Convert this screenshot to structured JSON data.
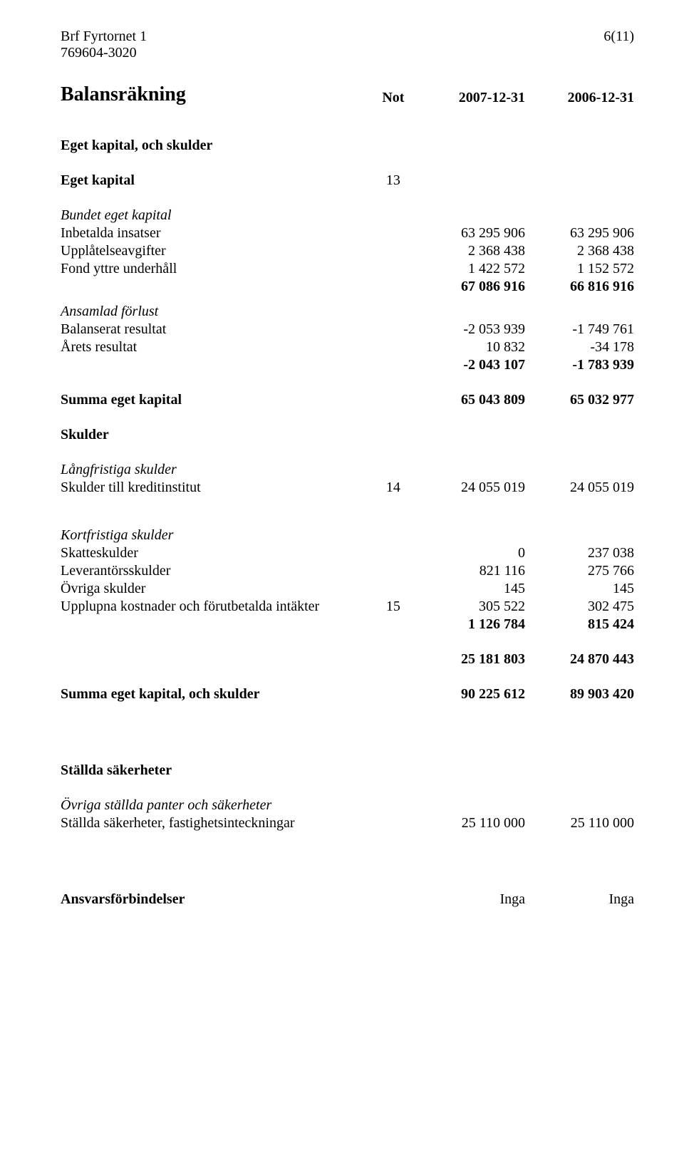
{
  "header": {
    "company": "Brf Fyrtornet 1",
    "orgnum": "769604-3020",
    "pageno": "6(11)"
  },
  "title": "Balansräkning",
  "columns": {
    "note": "Not",
    "a": "2007-12-31",
    "b": "2006-12-31"
  },
  "sections": {
    "eget_kapital_och_skulder": "Eget kapital, och skulder",
    "eget_kapital": {
      "label": "Eget kapital",
      "note": "13"
    },
    "bundet_eget_kapital": "Bundet eget kapital",
    "inbetalda_insatser": {
      "label": "Inbetalda insatser",
      "a": "63 295 906",
      "b": "63 295 906"
    },
    "upplatelseavgifter": {
      "label": "Upplåtelseavgifter",
      "a": "2 368 438",
      "b": "2 368 438"
    },
    "fond_yttre": {
      "label": "Fond yttre underhåll",
      "a": "1 422 572",
      "b": "1 152 572"
    },
    "bundet_sum": {
      "a": "67 086 916",
      "b": "66 816 916"
    },
    "ansamlad_forlust": "Ansamlad förlust",
    "balanserat_resultat": {
      "label": "Balanserat resultat",
      "a": "-2 053 939",
      "b": "-1 749 761"
    },
    "arets_resultat": {
      "label": "Årets resultat",
      "a": "10 832",
      "b": "-34 178"
    },
    "ansamlad_sum": {
      "a": "-2 043 107",
      "b": "-1 783 939"
    },
    "summa_eget_kapital": {
      "label": "Summa eget kapital",
      "a": "65 043 809",
      "b": "65 032 977"
    },
    "skulder": "Skulder",
    "langfristiga": "Långfristiga skulder",
    "skulder_kreditinstitut": {
      "label": "Skulder till kreditinstitut",
      "note": "14",
      "a": "24 055 019",
      "b": "24 055 019"
    },
    "kortfristiga": "Kortfristiga skulder",
    "skatteskulder": {
      "label": "Skatteskulder",
      "a": "0",
      "b": "237 038"
    },
    "leverantorsskulder": {
      "label": "Leverantörsskulder",
      "a": "821 116",
      "b": "275 766"
    },
    "ovriga_skulder": {
      "label": "Övriga skulder",
      "a": "145",
      "b": "145"
    },
    "upplupna": {
      "label": "Upplupna kostnader och förutbetalda intäkter",
      "note": "15",
      "a": "305 522",
      "b": "302 475"
    },
    "kortfristiga_sum": {
      "a": "1 126 784",
      "b": "815 424"
    },
    "skulder_total": {
      "a": "25 181 803",
      "b": "24 870 443"
    },
    "summa_eget_kapital_skulder": {
      "label": "Summa eget kapital, och skulder",
      "a": "90 225 612",
      "b": "89 903 420"
    },
    "stallda_sakerheter": "Ställda säkerheter",
    "ovriga_stallda": "Övriga ställda panter och säkerheter",
    "stallda_fastighet": {
      "label": "Ställda säkerheter, fastighetsinteckningar",
      "a": "25 110 000",
      "b": "25 110 000"
    },
    "ansvarsforbindelser": {
      "label": "Ansvarsförbindelser",
      "a": "Inga",
      "b": "Inga"
    }
  }
}
